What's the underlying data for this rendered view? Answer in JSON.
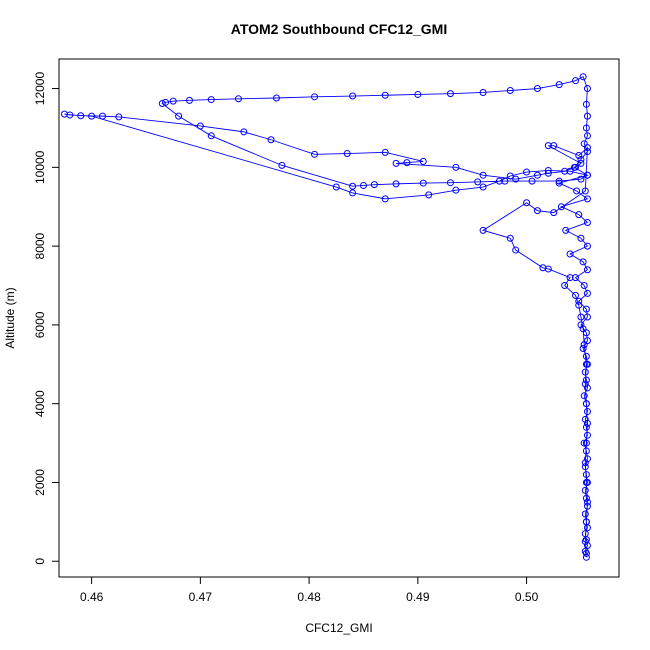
{
  "chart_data": {
    "type": "line",
    "title": "ATOM2 Southbound CFC12_GMI",
    "xlabel": "CFC12_GMI",
    "ylabel": "Altitude (m)",
    "xlim": [
      0.457,
      0.5085
    ],
    "ylim": [
      -400,
      12750
    ],
    "xticks": [
      0.46,
      0.47,
      0.48,
      0.49,
      0.5
    ],
    "xtick_labels": [
      "0.46",
      "0.47",
      "0.48",
      "0.49",
      "0.50"
    ],
    "yticks": [
      0,
      2000,
      4000,
      6000,
      8000,
      10000,
      12000
    ],
    "ytick_labels": [
      "0",
      "2000",
      "4000",
      "6000",
      "8000",
      "10000",
      "12000"
    ],
    "grid": false,
    "legend": "none",
    "series_color": "#0000ff",
    "series": [
      {
        "marker": "open-circle",
        "points": [
          [
            0.5055,
            100
          ],
          [
            0.5054,
            250
          ],
          [
            0.5056,
            400
          ],
          [
            0.5055,
            550
          ],
          [
            0.5054,
            700
          ],
          [
            0.5056,
            850
          ],
          [
            0.5055,
            1000
          ],
          [
            0.5054,
            1200
          ],
          [
            0.5056,
            1400
          ],
          [
            0.5055,
            1600
          ],
          [
            0.5054,
            1800
          ],
          [
            0.5056,
            2000
          ],
          [
            0.5055,
            2200
          ],
          [
            0.5054,
            2400
          ],
          [
            0.5056,
            2600
          ],
          [
            0.5055,
            2800
          ],
          [
            0.5053,
            3000
          ],
          [
            0.5056,
            3200
          ],
          [
            0.5055,
            3400
          ],
          [
            0.5054,
            3600
          ],
          [
            0.5056,
            3800
          ],
          [
            0.5055,
            4000
          ],
          [
            0.5053,
            4200
          ],
          [
            0.5056,
            4400
          ],
          [
            0.5055,
            4600
          ],
          [
            0.5054,
            4800
          ],
          [
            0.5056,
            5000
          ],
          [
            0.5055,
            5200
          ],
          [
            0.5052,
            5400
          ],
          [
            0.5056,
            5600
          ],
          [
            0.5055,
            5800
          ],
          [
            0.505,
            6000
          ],
          [
            0.5056,
            6200
          ],
          [
            0.5055,
            6400
          ],
          [
            0.5048,
            6600
          ],
          [
            0.5056,
            6800
          ],
          [
            0.5053,
            7000
          ],
          [
            0.5045,
            7200
          ],
          [
            0.5056,
            7400
          ],
          [
            0.5052,
            7600
          ],
          [
            0.504,
            7800
          ],
          [
            0.5056,
            8000
          ],
          [
            0.505,
            8200
          ],
          [
            0.5036,
            8400
          ],
          [
            0.5056,
            8600
          ],
          [
            0.5048,
            8800
          ],
          [
            0.5032,
            9000
          ],
          [
            0.5056,
            9200
          ],
          [
            0.5046,
            9400
          ],
          [
            0.503,
            9600
          ],
          [
            0.5056,
            9800
          ],
          [
            0.5044,
            10000
          ],
          [
            0.505,
            10200
          ],
          [
            0.5056,
            10400
          ],
          [
            0.5053,
            10600
          ],
          [
            0.5056,
            10800
          ],
          [
            0.5055,
            11000
          ],
          [
            0.5056,
            11300
          ],
          [
            0.5055,
            11600
          ],
          [
            0.5056,
            12000
          ],
          [
            0.5052,
            12300
          ],
          [
            0.5045,
            12200
          ],
          [
            0.503,
            12100
          ],
          [
            0.501,
            12000
          ],
          [
            0.4985,
            11950
          ],
          [
            0.496,
            11900
          ],
          [
            0.493,
            11870
          ],
          [
            0.49,
            11850
          ],
          [
            0.487,
            11830
          ],
          [
            0.484,
            11810
          ],
          [
            0.4805,
            11790
          ],
          [
            0.477,
            11760
          ],
          [
            0.4735,
            11740
          ],
          [
            0.471,
            11720
          ],
          [
            0.469,
            11700
          ],
          [
            0.4675,
            11680
          ],
          [
            0.4668,
            11650
          ],
          [
            0.4665,
            11620
          ],
          [
            0.468,
            11300
          ],
          [
            0.471,
            10800
          ],
          [
            0.4775,
            10050
          ],
          [
            0.484,
            9520
          ],
          [
            0.485,
            9540
          ],
          [
            0.486,
            9560
          ],
          [
            0.488,
            9580
          ],
          [
            0.4905,
            9600
          ],
          [
            0.493,
            9610
          ],
          [
            0.4955,
            9630
          ],
          [
            0.498,
            9650
          ],
          [
            0.5005,
            9650
          ],
          [
            0.503,
            9650
          ],
          [
            0.505,
            9700
          ],
          [
            0.5056,
            9800
          ],
          [
            0.504,
            9900
          ],
          [
            0.502,
            9920
          ],
          [
            0.5,
            9880
          ],
          [
            0.4985,
            9780
          ],
          [
            0.4975,
            9650
          ],
          [
            0.496,
            9500
          ],
          [
            0.4935,
            9420
          ],
          [
            0.491,
            9300
          ],
          [
            0.487,
            9200
          ],
          [
            0.484,
            9350
          ],
          [
            0.4825,
            9500
          ],
          [
            0.46,
            11300
          ],
          [
            0.458,
            11330
          ],
          [
            0.4575,
            11350
          ],
          [
            0.459,
            11310
          ],
          [
            0.461,
            11300
          ],
          [
            0.4625,
            11280
          ],
          [
            0.47,
            11050
          ],
          [
            0.474,
            10900
          ],
          [
            0.4765,
            10700
          ],
          [
            0.4805,
            10330
          ],
          [
            0.4835,
            10350
          ],
          [
            0.487,
            10380
          ],
          [
            0.4905,
            10150
          ],
          [
            0.489,
            10120
          ],
          [
            0.488,
            10100
          ],
          [
            0.4935,
            10000
          ],
          [
            0.496,
            9800
          ],
          [
            0.499,
            9700
          ],
          [
            0.501,
            9800
          ],
          [
            0.502,
            9850
          ],
          [
            0.5035,
            9900
          ],
          [
            0.5045,
            10000
          ],
          [
            0.505,
            10100
          ],
          [
            0.502,
            10550
          ],
          [
            0.5025,
            10550
          ],
          [
            0.5048,
            10300
          ],
          [
            0.5056,
            10500
          ],
          [
            0.5054,
            9400
          ],
          [
            0.5025,
            8850
          ],
          [
            0.501,
            8900
          ],
          [
            0.5,
            9100
          ],
          [
            0.496,
            8400
          ],
          [
            0.4985,
            8200
          ],
          [
            0.499,
            7900
          ],
          [
            0.5015,
            7450
          ],
          [
            0.502,
            7420
          ],
          [
            0.504,
            7200
          ],
          [
            0.5035,
            7000
          ],
          [
            0.5045,
            6750
          ],
          [
            0.5048,
            6500
          ],
          [
            0.505,
            6200
          ],
          [
            0.5052,
            5900
          ],
          [
            0.5053,
            5500
          ],
          [
            0.5055,
            5000
          ],
          [
            0.5054,
            4500
          ],
          [
            0.5055,
            4000
          ],
          [
            0.5056,
            3500
          ],
          [
            0.5055,
            3000
          ],
          [
            0.5054,
            2500
          ],
          [
            0.5055,
            2000
          ],
          [
            0.5056,
            1500
          ],
          [
            0.5055,
            1000
          ],
          [
            0.5054,
            500
          ],
          [
            0.5055,
            200
          ]
        ]
      }
    ]
  }
}
